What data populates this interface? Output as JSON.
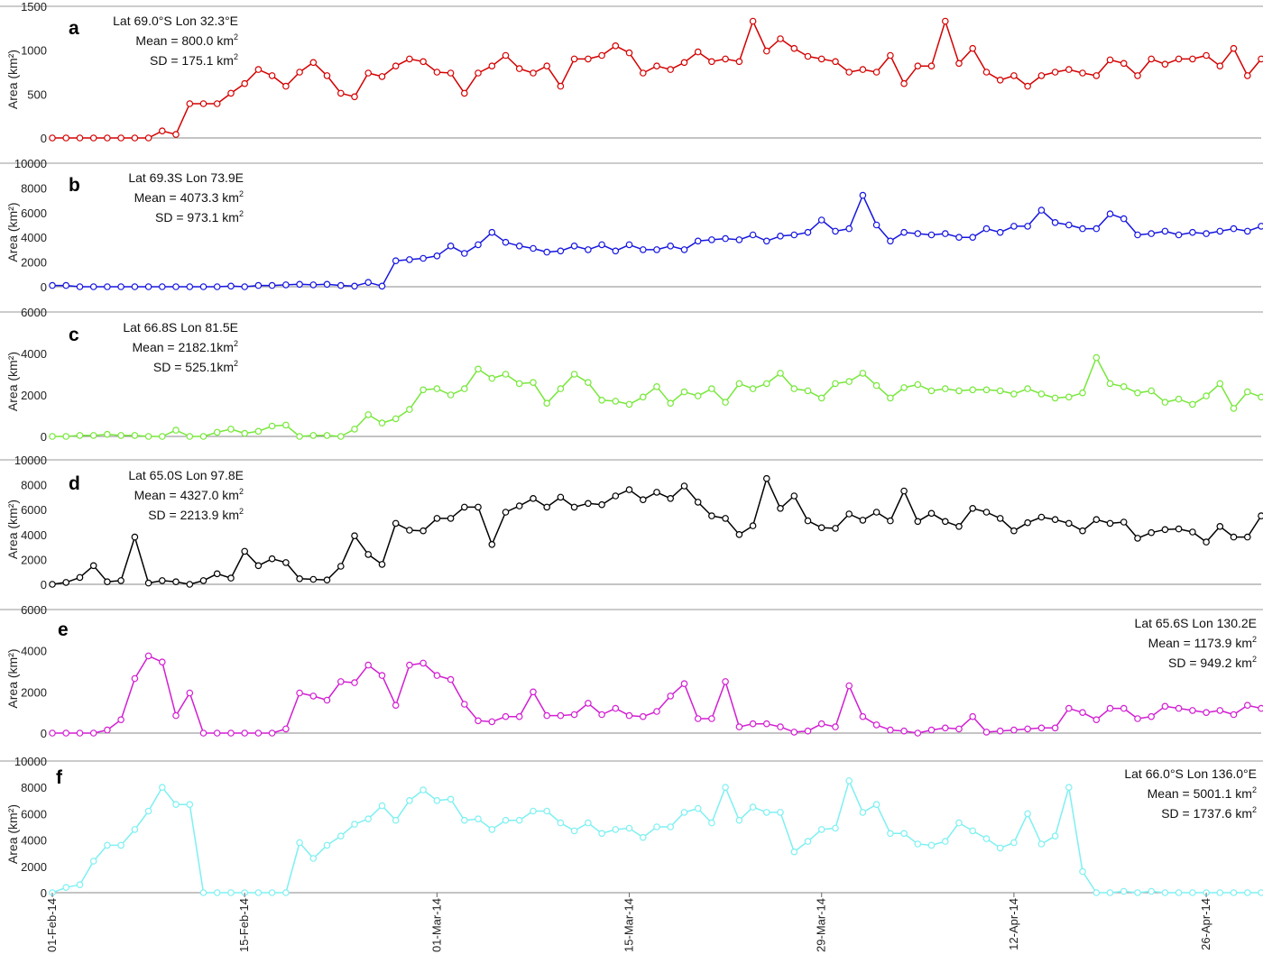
{
  "figure": {
    "x_start_label": "01-Feb-14",
    "x_range_days": [
      0,
      88
    ],
    "xticks": [
      {
        "day": 0,
        "label": "01-Feb-14"
      },
      {
        "day": 14,
        "label": "15-Feb-14"
      },
      {
        "day": 28,
        "label": "01-Mar-14"
      },
      {
        "day": 42,
        "label": "15-Mar-14"
      },
      {
        "day": 56,
        "label": "29-Mar-14"
      },
      {
        "day": 70,
        "label": "12-Apr-14"
      },
      {
        "day": 84,
        "label": "26-Apr-14"
      }
    ]
  },
  "chart_data": [
    {
      "type": "line",
      "panel": "a",
      "color": "#d40000",
      "ylabel": "Area (km²)",
      "ylim": [
        0,
        1500
      ],
      "yticks": [
        0,
        500,
        1000,
        1500
      ],
      "annotation": {
        "align": "left",
        "lines": [
          {
            "label": "Lat 69.0°S  Lon 32.3°E",
            "sup": ""
          },
          {
            "label": "Mean = 800.0 km",
            "sup": "2"
          },
          {
            "label": "SD = 175.1 km",
            "sup": "2"
          }
        ]
      },
      "x": [
        0,
        1,
        2,
        3,
        4,
        5,
        6,
        7,
        8,
        9,
        10,
        11,
        12,
        13,
        14,
        15,
        16,
        17,
        18,
        19,
        20,
        21,
        22,
        23,
        24,
        25,
        26,
        27,
        28,
        29,
        30,
        31,
        32,
        33,
        34,
        35,
        36,
        37,
        38,
        39,
        40,
        41,
        42,
        43,
        44,
        45,
        46,
        47,
        48,
        49,
        50,
        51,
        52,
        53,
        54,
        55,
        56,
        57,
        58,
        59,
        60,
        61,
        62,
        63,
        64,
        65,
        66,
        67,
        68,
        69,
        70,
        71,
        72,
        73,
        74,
        75,
        76,
        77,
        78,
        79,
        80,
        81,
        82,
        83,
        84,
        85,
        86,
        87,
        88
      ],
      "values": [
        0,
        0,
        0,
        0,
        0,
        0,
        0,
        0,
        80,
        40,
        390,
        390,
        390,
        510,
        620,
        780,
        710,
        590,
        750,
        860,
        710,
        510,
        470,
        740,
        700,
        820,
        900,
        870,
        750,
        740,
        510,
        740,
        820,
        940,
        790,
        740,
        820,
        590,
        900,
        900,
        940,
        1050,
        970,
        740,
        820,
        780,
        860,
        980,
        870,
        900,
        870,
        1330,
        990,
        1130,
        1020,
        930,
        900,
        870,
        750,
        780,
        750,
        940,
        620,
        820,
        820,
        1330,
        850,
        1020,
        750,
        660,
        710,
        590,
        710,
        750,
        780,
        740,
        710,
        890,
        850,
        710,
        900,
        840,
        900,
        900,
        940,
        820,
        1020,
        710,
        900
      ]
    },
    {
      "type": "line",
      "panel": "b",
      "color": "#1515e0",
      "ylabel": "Area (km²)",
      "ylim": [
        0,
        10000
      ],
      "yticks": [
        0,
        2000,
        4000,
        6000,
        8000,
        10000
      ],
      "annotation": {
        "align": "left",
        "lines": [
          {
            "label": "Lat 69.3S  Lon 73.9E",
            "sup": ""
          },
          {
            "label": "Mean = 4073.3 km",
            "sup": "2"
          },
          {
            "label": "SD =   973.1 km",
            "sup": "2"
          }
        ]
      },
      "x": [
        0,
        1,
        2,
        3,
        4,
        5,
        6,
        7,
        8,
        9,
        10,
        11,
        12,
        13,
        14,
        15,
        16,
        17,
        18,
        19,
        20,
        21,
        22,
        23,
        24,
        25,
        26,
        27,
        28,
        29,
        30,
        31,
        32,
        33,
        34,
        35,
        36,
        37,
        38,
        39,
        40,
        41,
        42,
        43,
        44,
        45,
        46,
        47,
        48,
        49,
        50,
        51,
        52,
        53,
        54,
        55,
        56,
        57,
        58,
        59,
        60,
        61,
        62,
        63,
        64,
        65,
        66,
        67,
        68,
        69,
        70,
        71,
        72,
        73,
        74,
        75,
        76,
        77,
        78,
        79,
        80,
        81,
        82,
        83,
        84,
        85,
        86,
        87,
        88
      ],
      "values": [
        100,
        100,
        0,
        0,
        0,
        0,
        0,
        0,
        0,
        0,
        0,
        0,
        0,
        50,
        0,
        100,
        100,
        150,
        200,
        150,
        200,
        100,
        50,
        350,
        50,
        2100,
        2200,
        2300,
        2500,
        3300,
        2700,
        3400,
        4400,
        3600,
        3300,
        3100,
        2800,
        2900,
        3300,
        3000,
        3400,
        2900,
        3400,
        3000,
        3000,
        3300,
        3000,
        3700,
        3800,
        3900,
        3800,
        4200,
        3700,
        4100,
        4200,
        4400,
        5400,
        4500,
        4700,
        7400,
        5000,
        3700,
        4400,
        4300,
        4200,
        4300,
        4000,
        4000,
        4700,
        4400,
        4900,
        4900,
        6200,
        5200,
        5000,
        4700,
        4700,
        5900,
        5500,
        4200,
        4300,
        4500,
        4200,
        4400,
        4300,
        4500,
        4700,
        4500,
        4900
      ]
    },
    {
      "type": "line",
      "panel": "c",
      "color": "#77e83a",
      "ylabel": "Area (km²)",
      "ylim": [
        0,
        6000
      ],
      "yticks": [
        0,
        2000,
        4000,
        6000
      ],
      "annotation": {
        "align": "left",
        "lines": [
          {
            "label": "Lat 66.8S  Lon 81.5E",
            "sup": ""
          },
          {
            "label": "Mean = 2182.1km",
            "sup": "2"
          },
          {
            "label": "SD =   525.1km",
            "sup": "2"
          }
        ]
      },
      "x": [
        0,
        1,
        2,
        3,
        4,
        5,
        6,
        7,
        8,
        9,
        10,
        11,
        12,
        13,
        14,
        15,
        16,
        17,
        18,
        19,
        20,
        21,
        22,
        23,
        24,
        25,
        26,
        27,
        28,
        29,
        30,
        31,
        32,
        33,
        34,
        35,
        36,
        37,
        38,
        39,
        40,
        41,
        42,
        43,
        44,
        45,
        46,
        47,
        48,
        49,
        50,
        51,
        52,
        53,
        54,
        55,
        56,
        57,
        58,
        59,
        60,
        61,
        62,
        63,
        64,
        65,
        66,
        67,
        68,
        69,
        70,
        71,
        72,
        73,
        74,
        75,
        76,
        77,
        78,
        79,
        80,
        81,
        82,
        83,
        84,
        85,
        86,
        87,
        88
      ],
      "values": [
        0,
        0,
        50,
        50,
        100,
        50,
        50,
        0,
        0,
        300,
        0,
        0,
        200,
        350,
        150,
        250,
        500,
        550,
        0,
        50,
        50,
        0,
        350,
        1050,
        650,
        850,
        1300,
        2250,
        2300,
        2000,
        2300,
        3250,
        2800,
        3000,
        2550,
        2600,
        1600,
        2300,
        3000,
        2600,
        1750,
        1700,
        1550,
        1900,
        2400,
        1600,
        2150,
        1950,
        2300,
        1650,
        2550,
        2300,
        2550,
        3050,
        2300,
        2200,
        1850,
        2550,
        2650,
        3050,
        2450,
        1850,
        2350,
        2500,
        2200,
        2300,
        2200,
        2250,
        2250,
        2200,
        2050,
        2300,
        2050,
        1850,
        1900,
        2100,
        3800,
        2550,
        2400,
        2100,
        2200,
        1650,
        1800,
        1550,
        1950,
        2550,
        1350,
        2150,
        1900
      ]
    },
    {
      "type": "line",
      "panel": "d",
      "color": "#000000",
      "ylabel": "Area (km²)",
      "ylim": [
        0,
        10000
      ],
      "yticks": [
        0,
        2000,
        4000,
        6000,
        8000,
        10000
      ],
      "annotation": {
        "align": "left",
        "lines": [
          {
            "label": "Lat 65.0S  Lon 97.8E",
            "sup": ""
          },
          {
            "label": "Mean = 4327.0  km",
            "sup": "2"
          },
          {
            "label": "SD = 2213.9  km",
            "sup": "2"
          }
        ]
      },
      "x": [
        0,
        1,
        2,
        3,
        4,
        5,
        6,
        7,
        8,
        9,
        10,
        11,
        12,
        13,
        14,
        15,
        16,
        17,
        18,
        19,
        20,
        21,
        22,
        23,
        24,
        25,
        26,
        27,
        28,
        29,
        30,
        31,
        32,
        33,
        34,
        35,
        36,
        37,
        38,
        39,
        40,
        41,
        42,
        43,
        44,
        45,
        46,
        47,
        48,
        49,
        50,
        51,
        52,
        53,
        54,
        55,
        56,
        57,
        58,
        59,
        60,
        61,
        62,
        63,
        64,
        65,
        66,
        67,
        68,
        69,
        70,
        71,
        72,
        73,
        74,
        75,
        76,
        77,
        78,
        79,
        80,
        81,
        82,
        83,
        84,
        85,
        86,
        87,
        88
      ],
      "values": [
        0,
        150,
        550,
        1500,
        200,
        300,
        3800,
        100,
        300,
        200,
        0,
        300,
        850,
        500,
        2650,
        1500,
        2050,
        1750,
        450,
        400,
        350,
        1450,
        3900,
        2400,
        1600,
        4900,
        4350,
        4300,
        5300,
        5300,
        6200,
        6200,
        3200,
        5800,
        6300,
        6900,
        6200,
        7000,
        6200,
        6500,
        6400,
        7100,
        7600,
        6800,
        7400,
        6900,
        7900,
        6600,
        5500,
        5300,
        4000,
        4700,
        8500,
        6100,
        7100,
        5100,
        4550,
        4500,
        5650,
        5150,
        5800,
        5100,
        7500,
        5050,
        5700,
        5050,
        4650,
        6100,
        5800,
        5300,
        4300,
        4950,
        5400,
        5200,
        4900,
        4300,
        5200,
        4900,
        5000,
        3700,
        4150,
        4400,
        4450,
        4200,
        3400,
        4650,
        3800,
        3800,
        5500
      ]
    },
    {
      "type": "line",
      "panel": "e",
      "color": "#d21ed2",
      "ylabel": "Area (km²)",
      "ylim": [
        0,
        6000
      ],
      "yticks": [
        0,
        2000,
        4000,
        6000
      ],
      "annotation": {
        "align": "right",
        "lines": [
          {
            "label": "Lat 65.6S  Lon 130.2E",
            "sup": ""
          },
          {
            "label": "Mean = 1173.9  km",
            "sup": "2"
          },
          {
            "label": "SD =   949.2  km",
            "sup": "2"
          }
        ]
      },
      "x": [
        0,
        1,
        2,
        3,
        4,
        5,
        6,
        7,
        8,
        9,
        10,
        11,
        12,
        13,
        14,
        15,
        16,
        17,
        18,
        19,
        20,
        21,
        22,
        23,
        24,
        25,
        26,
        27,
        28,
        29,
        30,
        31,
        32,
        33,
        34,
        35,
        36,
        37,
        38,
        39,
        40,
        41,
        42,
        43,
        44,
        45,
        46,
        47,
        48,
        49,
        50,
        51,
        52,
        53,
        54,
        55,
        56,
        57,
        58,
        59,
        60,
        61,
        62,
        63,
        64,
        65,
        66,
        67,
        68,
        69,
        70,
        71,
        72,
        73,
        74,
        75,
        76,
        77,
        78,
        79,
        80,
        81,
        82,
        83,
        84,
        85,
        86,
        87,
        88
      ],
      "values": [
        0,
        0,
        0,
        0,
        150,
        650,
        2650,
        3750,
        3450,
        850,
        1950,
        0,
        0,
        0,
        0,
        0,
        0,
        200,
        1950,
        1800,
        1600,
        2500,
        2450,
        3300,
        2800,
        1350,
        3300,
        3400,
        2800,
        2600,
        1400,
        600,
        550,
        800,
        800,
        2000,
        850,
        850,
        900,
        1450,
        900,
        1200,
        850,
        800,
        1050,
        1800,
        2400,
        700,
        700,
        2500,
        300,
        450,
        450,
        300,
        50,
        100,
        450,
        300,
        2300,
        800,
        400,
        150,
        100,
        0,
        150,
        250,
        200,
        800,
        50,
        100,
        150,
        200,
        250,
        250,
        1200,
        1000,
        650,
        1200,
        1200,
        700,
        800,
        1300,
        1200,
        1100,
        1000,
        1100,
        900,
        1350,
        1200
      ]
    },
    {
      "type": "line",
      "panel": "f",
      "color": "#7ef0f2",
      "ylabel": "Area (km²)",
      "ylim": [
        0,
        10000
      ],
      "yticks": [
        0,
        2000,
        4000,
        6000,
        8000,
        10000
      ],
      "annotation": {
        "align": "right",
        "lines": [
          {
            "label": "Lat 66.0°S  Lon 136.0°E",
            "sup": ""
          },
          {
            "label": "Mean = 5001.1 km",
            "sup": "2"
          },
          {
            "label": "SD = 1737.6 km",
            "sup": "2"
          }
        ]
      },
      "x": [
        0,
        1,
        2,
        3,
        4,
        5,
        6,
        7,
        8,
        9,
        10,
        11,
        12,
        13,
        14,
        15,
        16,
        17,
        18,
        19,
        20,
        21,
        22,
        23,
        24,
        25,
        26,
        27,
        28,
        29,
        30,
        31,
        32,
        33,
        34,
        35,
        36,
        37,
        38,
        39,
        40,
        41,
        42,
        43,
        44,
        45,
        46,
        47,
        48,
        49,
        50,
        51,
        52,
        53,
        54,
        55,
        56,
        57,
        58,
        59,
        60,
        61,
        62,
        63,
        64,
        65,
        66,
        67,
        68,
        69,
        70,
        71,
        72,
        73,
        74,
        75,
        76,
        77,
        78,
        79,
        80,
        81,
        82,
        83,
        84,
        85,
        86,
        87,
        88
      ],
      "values": [
        0,
        400,
        600,
        2400,
        3600,
        3600,
        4800,
        6200,
        8000,
        6700,
        6700,
        0,
        0,
        0,
        0,
        0,
        0,
        0,
        3800,
        2600,
        3600,
        4300,
        5200,
        5600,
        6600,
        5500,
        7000,
        7800,
        7000,
        7100,
        5500,
        5600,
        4800,
        5500,
        5500,
        6200,
        6200,
        5300,
        4700,
        5300,
        4500,
        4800,
        4900,
        4200,
        5000,
        5000,
        6100,
        6400,
        5300,
        8000,
        5500,
        6500,
        6100,
        6100,
        3100,
        3900,
        4800,
        4900,
        8500,
        6100,
        6700,
        4500,
        4500,
        3700,
        3600,
        3900,
        5300,
        4700,
        4100,
        3400,
        3800,
        6000,
        3700,
        4300,
        8000,
        1600,
        0,
        0,
        100,
        0,
        100,
        0,
        0,
        0,
        0,
        0,
        0,
        0,
        0
      ]
    }
  ]
}
